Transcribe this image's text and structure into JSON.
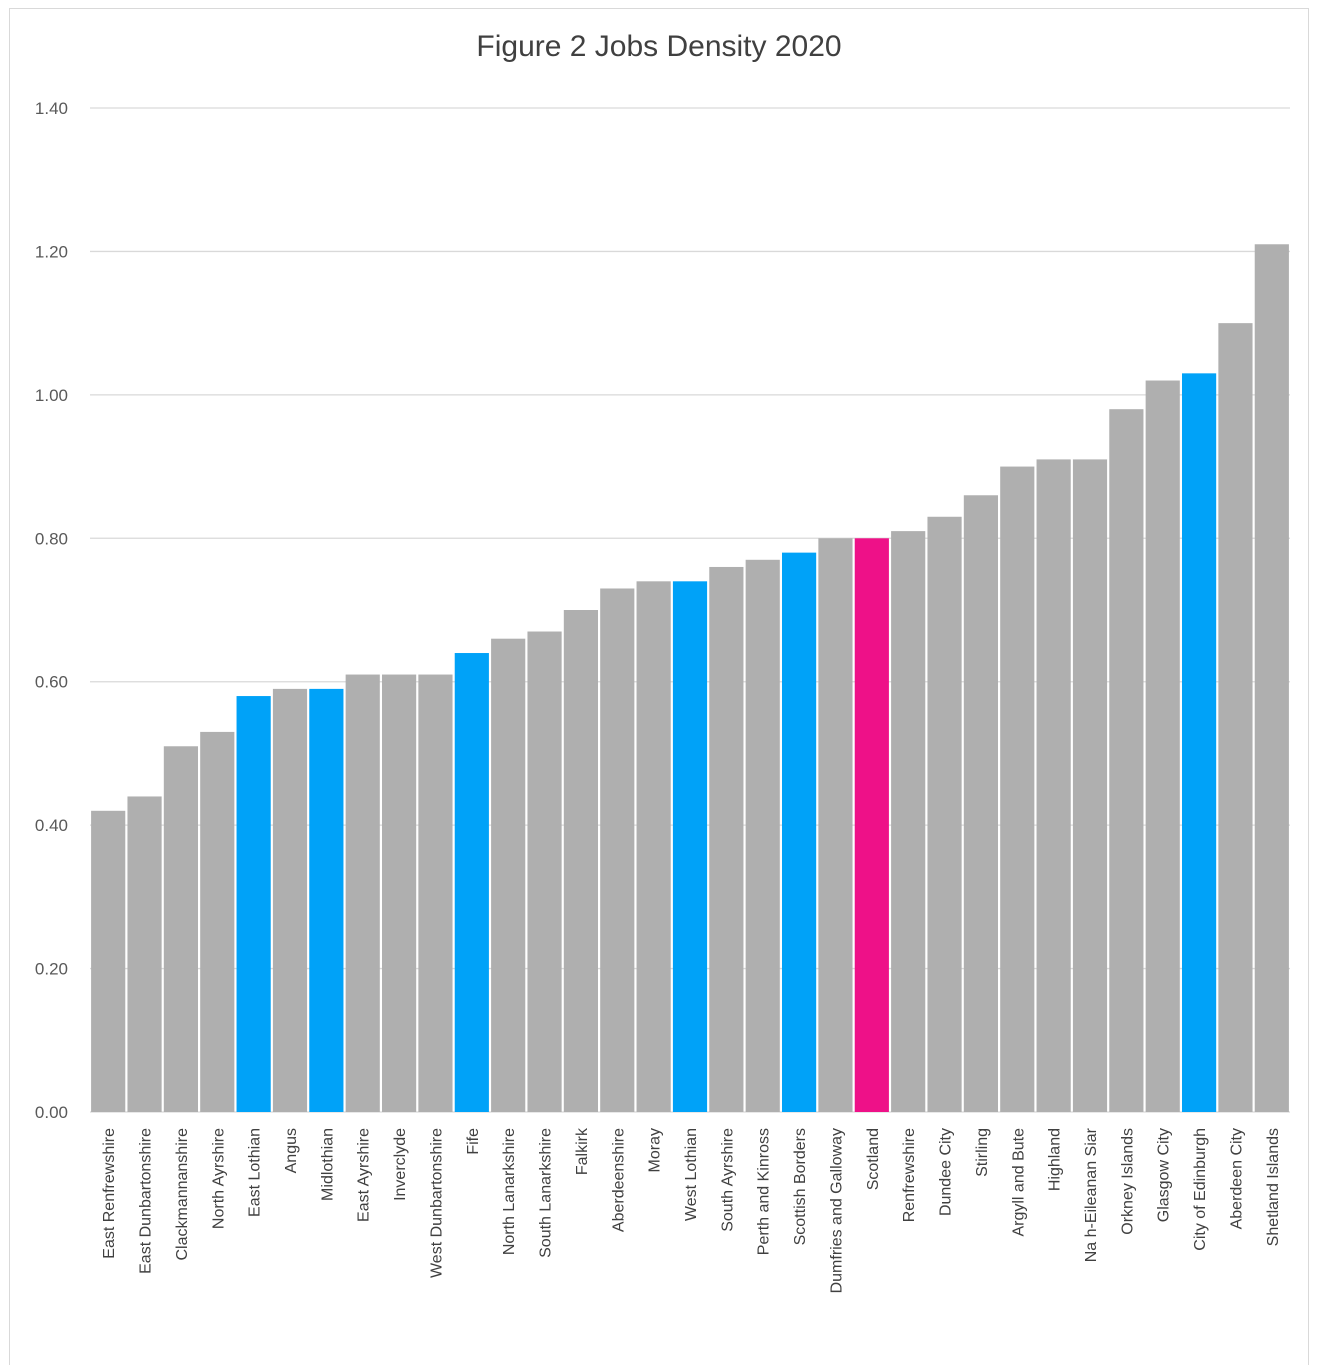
{
  "chart_data": {
    "type": "bar",
    "title": "Figure 2 Jobs Density 2020",
    "xlabel": "",
    "ylabel": "",
    "ylim": [
      0,
      1.4
    ],
    "yticks": [
      "0.00",
      "0.20",
      "0.40",
      "0.60",
      "0.80",
      "1.00",
      "1.20",
      "1.40"
    ],
    "grid": true,
    "legend": "none",
    "categories": [
      "East Renfrewshire",
      "East Dunbartonshire",
      "Clackmannanshire",
      "North Ayrshire",
      "East Lothian",
      "Angus",
      "Midlothian",
      "East Ayrshire",
      "Inverclyde",
      "West Dunbartonshire",
      "Fife",
      "North Lanarkshire",
      "South Lanarkshire",
      "Falkirk",
      "Aberdeenshire",
      "Moray",
      "West Lothian",
      "South Ayrshire",
      "Perth and Kinross",
      "Scottish Borders",
      "Dumfries and Galloway",
      "Scotland",
      "Renfrewshire",
      "Dundee City",
      "Stirling",
      "Argyll and Bute",
      "Highland",
      "Na h-Eileanan Siar",
      "Orkney Islands",
      "Glasgow City",
      "City of Edinburgh",
      "Aberdeen City",
      "Shetland Islands"
    ],
    "values": [
      0.42,
      0.44,
      0.51,
      0.53,
      0.58,
      0.59,
      0.59,
      0.61,
      0.61,
      0.61,
      0.64,
      0.66,
      0.67,
      0.7,
      0.73,
      0.74,
      0.74,
      0.76,
      0.77,
      0.78,
      0.8,
      0.8,
      0.81,
      0.83,
      0.86,
      0.9,
      0.91,
      0.91,
      0.98,
      1.02,
      1.03,
      1.1,
      1.21
    ],
    "highlight_categories": [
      "East Lothian",
      "Midlothian",
      "Fife",
      "West Lothian",
      "Scottish Borders",
      "City of Edinburgh"
    ],
    "reference_category": "Scotland",
    "colors": {
      "default": "#afafaf",
      "highlight": "#00a2f8",
      "reference": "#ee1188",
      "grid": "#d9d9d9"
    }
  }
}
